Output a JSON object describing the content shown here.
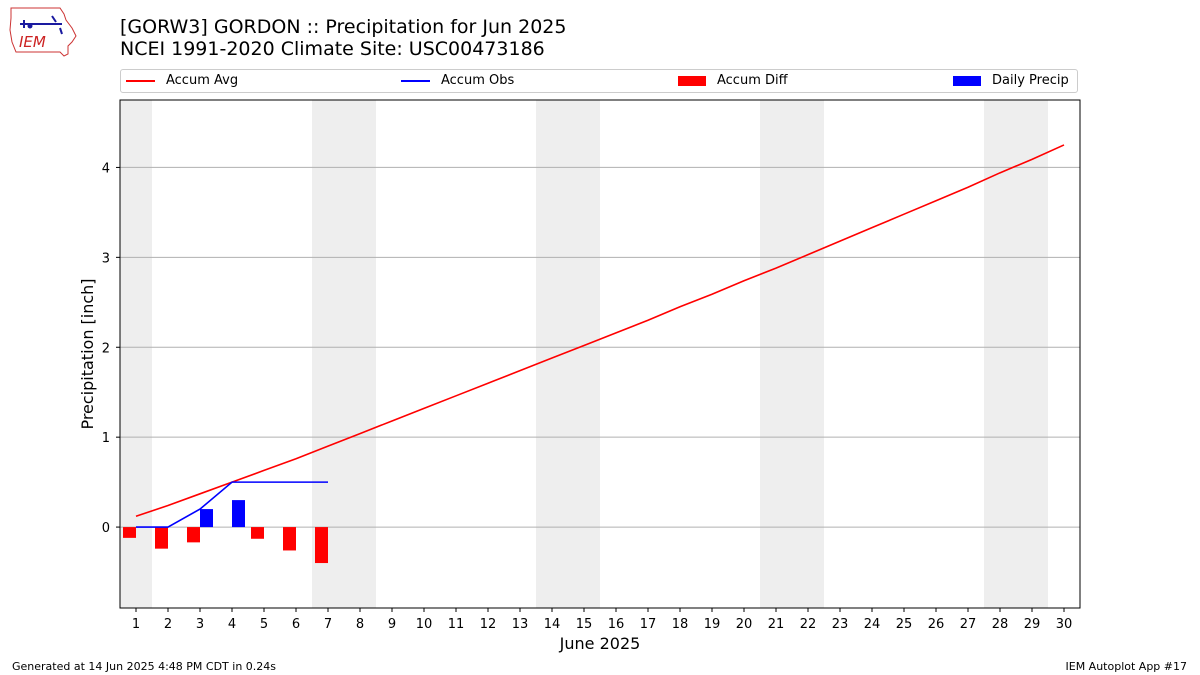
{
  "logo": {
    "text": "IEM"
  },
  "title": {
    "line1": "[GORW3] GORDON :: Precipitation for Jun 2025",
    "line2": "NCEI 1991-2020 Climate Site: USC00473186"
  },
  "legend": [
    {
      "label": "Accum Avg",
      "color": "#ff0000",
      "kind": "line"
    },
    {
      "label": "Accum Obs",
      "color": "#0000ff",
      "kind": "line"
    },
    {
      "label": "Accum Diff",
      "color": "#ff0000",
      "kind": "box"
    },
    {
      "label": "Daily Precip",
      "color": "#0000ff",
      "kind": "box"
    }
  ],
  "footer": {
    "generated": "Generated at 14 Jun 2025 4:48 PM CDT in 0.24s",
    "app": "IEM Autoplot App #17"
  },
  "colors": {
    "avg": "#ff0000",
    "obs": "#0000ff",
    "weekend_shade": "#eeeeee",
    "grid": "#b0b0b0"
  },
  "chart_data": {
    "type": "bar",
    "xlabel": "June 2025",
    "ylabel": "Precipitation [inch]",
    "days": [
      1,
      2,
      3,
      4,
      5,
      6,
      7,
      8,
      9,
      10,
      11,
      12,
      13,
      14,
      15,
      16,
      17,
      18,
      19,
      20,
      21,
      22,
      23,
      24,
      25,
      26,
      27,
      28,
      29,
      30
    ],
    "ylim": [
      -0.9,
      4.75
    ],
    "yticks": [
      0,
      1,
      2,
      3,
      4
    ],
    "grid": "horizontal",
    "legend_position": "top",
    "weekend_shading": [
      [
        0.5,
        1.5
      ],
      [
        6.5,
        8.5
      ],
      [
        13.5,
        15.5
      ],
      [
        20.5,
        22.5
      ],
      [
        27.5,
        29.5
      ]
    ],
    "series": [
      {
        "name": "Accum Avg",
        "type": "line",
        "x": [
          1,
          2,
          3,
          4,
          5,
          6,
          7,
          8,
          9,
          10,
          11,
          12,
          13,
          14,
          15,
          16,
          17,
          18,
          19,
          20,
          21,
          22,
          23,
          24,
          25,
          26,
          27,
          28,
          29,
          30
        ],
        "values": [
          0.12,
          0.24,
          0.37,
          0.5,
          0.63,
          0.76,
          0.9,
          1.04,
          1.18,
          1.32,
          1.46,
          1.6,
          1.74,
          1.88,
          2.02,
          2.16,
          2.3,
          2.45,
          2.59,
          2.74,
          2.88,
          3.03,
          3.18,
          3.33,
          3.48,
          3.63,
          3.78,
          3.94,
          4.09,
          4.25
        ]
      },
      {
        "name": "Accum Obs",
        "type": "line",
        "x": [
          1,
          2,
          3,
          4,
          5,
          6,
          7
        ],
        "values": [
          0.0,
          0.0,
          0.2,
          0.5,
          0.5,
          0.5,
          0.5
        ]
      },
      {
        "name": "Accum Diff",
        "type": "bar",
        "x": [
          1,
          2,
          3,
          4,
          5,
          6,
          7
        ],
        "values": [
          -0.12,
          -0.24,
          -0.17,
          0.0,
          -0.13,
          -0.26,
          -0.4
        ]
      },
      {
        "name": "Daily Precip",
        "type": "bar",
        "x": [
          1,
          2,
          3,
          4,
          5,
          6,
          7
        ],
        "values": [
          0.0,
          0.0,
          0.2,
          0.3,
          0.0,
          0.0,
          0.0
        ]
      }
    ]
  }
}
